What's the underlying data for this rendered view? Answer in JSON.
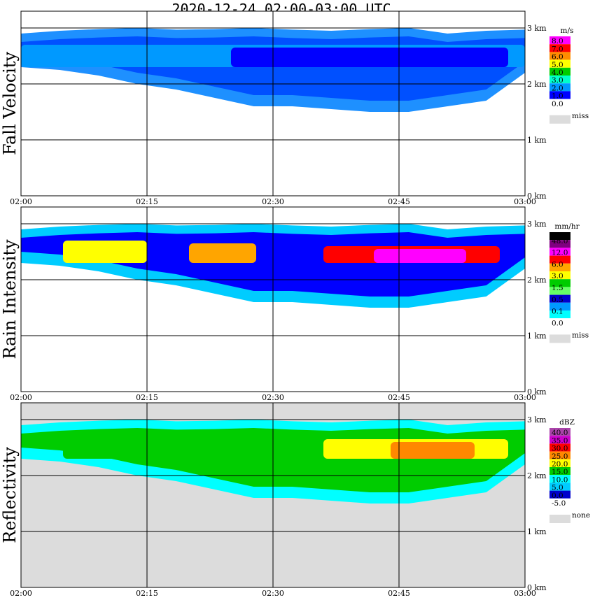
{
  "title": "2020-12-24   02:00-03:00 UTC",
  "x_ticks": [
    "02:00",
    "02:15",
    "02:30",
    "02:45",
    "03:00"
  ],
  "y_ticks": [
    "0 km",
    "1 km",
    "2 km",
    "3 km"
  ],
  "colors": {
    "no_data_gray": "#dcdcdc",
    "grid": "#000000"
  },
  "chart_data": [
    {
      "type": "heatmap",
      "ylabel": "Fall Velocity",
      "x_range": [
        "02:00",
        "03:00"
      ],
      "y_range_km": [
        0,
        3.3
      ],
      "background": "white",
      "colorbar": {
        "unit": "m/s",
        "labels": [
          "8.0",
          "7.0",
          "6.0",
          "5.0",
          "4.0",
          "3.0",
          "2.0",
          "1.0",
          "0.0"
        ],
        "colors": [
          "#ff00ff",
          "#ff0000",
          "#ff8c00",
          "#ffff00",
          "#00cc00",
          "#00ffcc",
          "#0099ff",
          "#0000ff",
          "#ffffff"
        ],
        "missing_label": "miss"
      },
      "echo": {
        "top_km": [
          2.9,
          2.95,
          2.98,
          3.0,
          2.97,
          2.98,
          3.0,
          2.97,
          2.95,
          2.98,
          3.0,
          2.9,
          2.95,
          2.97
        ],
        "base_km": [
          2.3,
          2.25,
          2.15,
          2.0,
          1.9,
          1.75,
          1.6,
          1.6,
          1.55,
          1.5,
          1.5,
          1.6,
          1.7,
          2.2
        ],
        "cores": [
          {
            "from": "02:00",
            "to": "03:00",
            "color_index": 6
          },
          {
            "from": "02:25",
            "to": "02:58",
            "color_index": 7
          }
        ]
      }
    },
    {
      "type": "heatmap",
      "ylabel": "Rain Intensity",
      "x_range": [
        "02:00",
        "03:00"
      ],
      "y_range_km": [
        0,
        3.3
      ],
      "background": "white",
      "colorbar": {
        "unit": "mm/hr",
        "labels": [
          "48.0",
          "12.0",
          "6.0",
          "3.0",
          "1.5",
          "0.5",
          "0.1",
          "0.0"
        ],
        "colors": [
          "#000000",
          "#800080",
          "#ff00ff",
          "#ff0000",
          "#ffa500",
          "#ffff00",
          "#00cc00",
          "#66ff66",
          "#0000cc",
          "#0099ff",
          "#00ffff",
          "#ffffff"
        ],
        "missing_label": "miss"
      },
      "echo": {
        "top_km": [
          2.9,
          2.95,
          2.98,
          3.0,
          2.97,
          2.98,
          3.0,
          2.97,
          2.95,
          2.98,
          3.0,
          2.9,
          2.95,
          2.97
        ],
        "base_km": [
          2.3,
          2.25,
          2.15,
          2.0,
          1.9,
          1.75,
          1.6,
          1.6,
          1.55,
          1.5,
          1.5,
          1.6,
          1.7,
          2.2
        ],
        "cores": [
          {
            "from": "02:05",
            "to": "02:15",
            "color_index": 5
          },
          {
            "from": "02:20",
            "to": "02:28",
            "color_index": 4
          },
          {
            "from": "02:36",
            "to": "02:57",
            "color_index": 3
          },
          {
            "from": "02:42",
            "to": "02:53",
            "color_index": 2
          }
        ]
      }
    },
    {
      "type": "heatmap",
      "ylabel": "Reflectivity",
      "x_range": [
        "02:00",
        "03:00"
      ],
      "y_range_km": [
        0,
        3.3
      ],
      "background": "gray",
      "colorbar": {
        "unit": "dBZ",
        "labels": [
          "40.0",
          "35.0",
          "30.0",
          "25.0",
          "20.0",
          "15.0",
          "10.0",
          "5.0",
          "0.0",
          "-5.0"
        ],
        "colors": [
          "#aa44aa",
          "#cc00cc",
          "#ff0000",
          "#ff8800",
          "#ffff00",
          "#00cc00",
          "#00ffff",
          "#00ccff",
          "#0000cc",
          "#ffffff"
        ],
        "missing_label": "none"
      },
      "echo": {
        "top_km": [
          2.9,
          2.95,
          2.98,
          3.0,
          2.97,
          2.98,
          3.0,
          2.97,
          2.95,
          2.98,
          3.0,
          2.9,
          2.95,
          2.97
        ],
        "base_km": [
          2.3,
          2.25,
          2.15,
          2.0,
          1.9,
          1.75,
          1.6,
          1.6,
          1.55,
          1.5,
          1.5,
          1.6,
          1.7,
          2.2
        ],
        "cores": [
          {
            "from": "02:05",
            "to": "02:30",
            "color_index": 5
          },
          {
            "from": "02:36",
            "to": "02:58",
            "color_index": 4
          },
          {
            "from": "02:44",
            "to": "02:54",
            "color_index": 3
          }
        ]
      }
    }
  ]
}
